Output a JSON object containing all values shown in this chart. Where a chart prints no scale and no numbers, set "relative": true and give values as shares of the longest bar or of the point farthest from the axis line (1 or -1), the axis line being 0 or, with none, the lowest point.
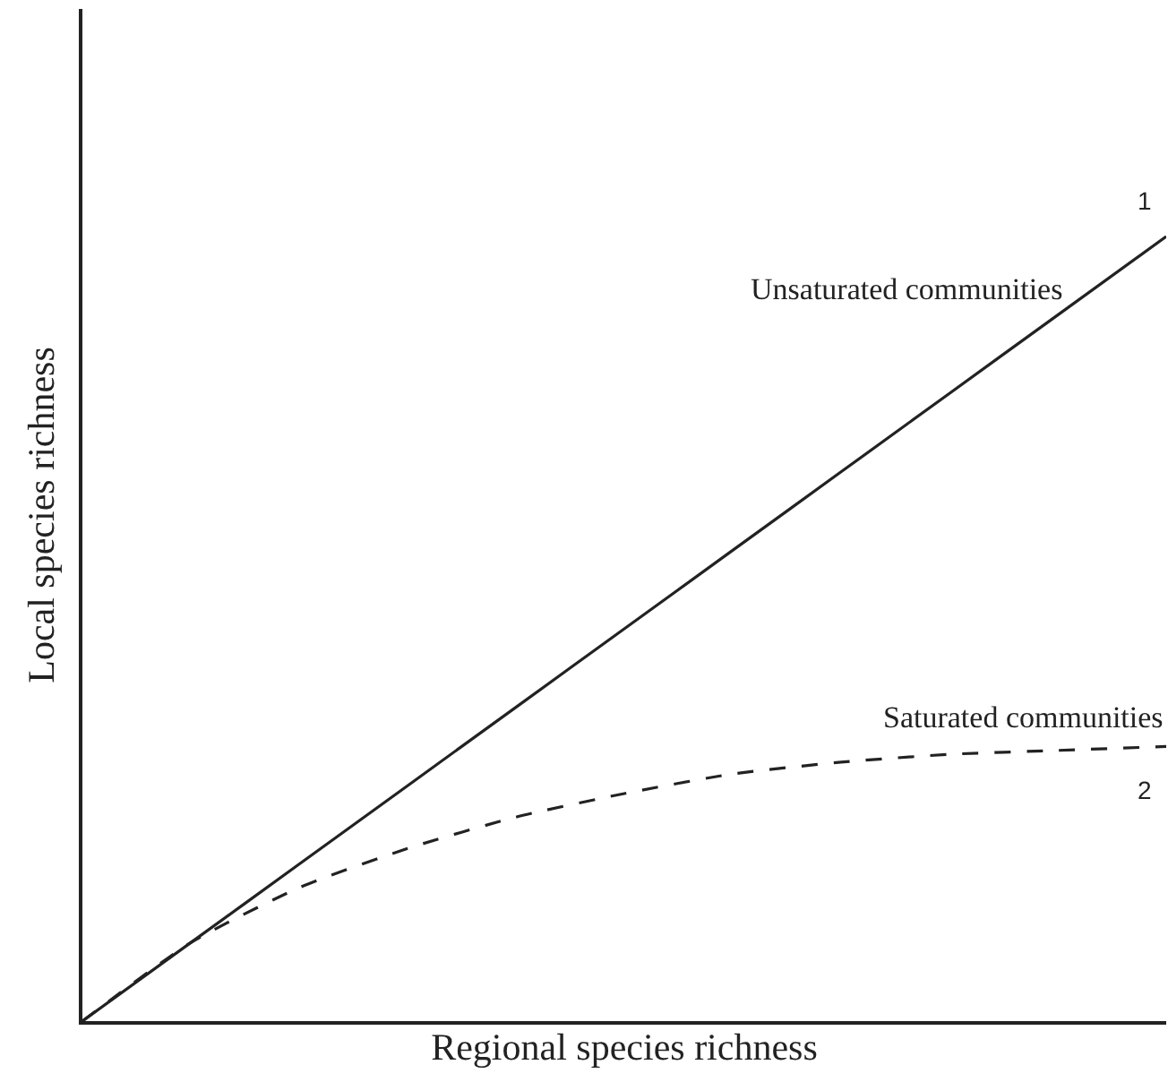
{
  "chart_data": {
    "type": "line",
    "relative": true,
    "xlabel": "Regional species richness",
    "ylabel": "Local species richness",
    "tick_labels": false,
    "legend": false,
    "categories": [
      null,
      null,
      null,
      null,
      null,
      null,
      null,
      null,
      null,
      null,
      null
    ],
    "series": [
      {
        "name": "Unsaturated communities",
        "color": "#222222",
        "line_style": "solid",
        "values": [
          0,
          0.1,
          0.2,
          0.3,
          0.4,
          0.5,
          0.6,
          0.7,
          0.8,
          0.9,
          1
        ]
      },
      {
        "name": "Saturated communities",
        "color": "#222222",
        "line_style": "dashed",
        "values": [
          0,
          0.1,
          0.17,
          0.22,
          0.26,
          0.29,
          0.315,
          0.33,
          0.34,
          0.345,
          0.35
        ]
      }
    ],
    "annotations": [
      "1",
      "2"
    ]
  }
}
